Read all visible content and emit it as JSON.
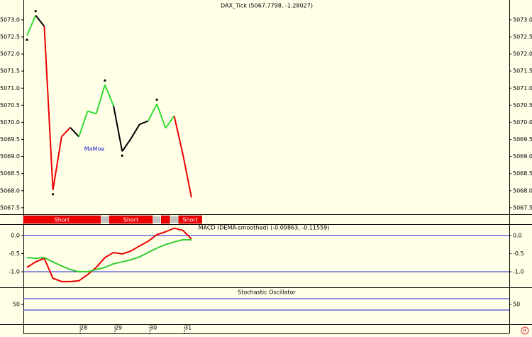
{
  "chart_data": [
    {
      "type": "line",
      "title": "DAX_Tick (5067.7798, -1.28027)",
      "annotation": "MaMoe",
      "x": [
        0,
        1,
        2,
        3,
        4,
        5,
        6,
        7,
        8,
        9,
        10,
        11,
        12,
        13,
        14,
        15,
        16,
        17,
        18,
        19
      ],
      "values": [
        5072.54,
        5073.13,
        5072.81,
        5068.02,
        5069.58,
        5069.85,
        5069.58,
        5070.33,
        5070.25,
        5071.1,
        5070.48,
        5069.15,
        5069.52,
        5069.94,
        5070.04,
        5070.54,
        5069.83,
        5070.19,
        5069.07,
        5067.8
      ],
      "segment_colors": [
        "#33dd33",
        "#000000",
        "#ee0000",
        "#ee0000",
        "#ee0000",
        "#000000",
        "#33dd33",
        "#33dd33",
        "#33dd33",
        "#33dd33",
        "#000000",
        "#000000",
        "#000000",
        "#000000",
        "#33dd33",
        "#33dd33",
        "#33dd33",
        "#ee0000",
        "#ee0000"
      ],
      "pivots": {
        "high": [
          1,
          9,
          15
        ],
        "low": [
          0,
          3,
          11
        ]
      },
      "signals": [
        {
          "state": "short",
          "label": "Short",
          "from": -0.41,
          "to": 8.5
        },
        {
          "state": "flat",
          "label": null,
          "from": 8.5,
          "to": 9.5
        },
        {
          "state": "short",
          "label": "Short",
          "from": 9.5,
          "to": 14.5
        },
        {
          "state": "flat",
          "label": null,
          "from": 14.5,
          "to": 15.5
        },
        {
          "state": "short",
          "label": null,
          "from": 15.5,
          "to": 16.5
        },
        {
          "state": "flat",
          "label": null,
          "from": 16.5,
          "to": 17.5
        },
        {
          "state": "short",
          "label": "Short",
          "from": 17.5,
          "to": 20.2
        }
      ],
      "signal_colors": {
        "short": "#ee0000",
        "flat": "#c0c0c0"
      },
      "xlim": [
        -0.41,
        55.7
      ],
      "xticks": [
        {
          "value": 6.15,
          "label": "28"
        },
        {
          "value": 10.16,
          "label": "29"
        },
        {
          "value": 14.18,
          "label": "30"
        },
        {
          "value": 18.2,
          "label": "31"
        }
      ],
      "ylim": [
        5067.31,
        5073.58
      ],
      "yticks": [
        5067.5,
        {
          "value": 5068,
          "label": "5068.0"
        },
        5068.5,
        {
          "value": 5069,
          "label": "5069.0"
        },
        5069.5,
        {
          "value": 5070,
          "label": "5070.0"
        },
        5070.5,
        {
          "value": 5071,
          "label": "5071.0"
        },
        5071.5,
        {
          "value": 5072,
          "label": "5072.0"
        },
        5072.5,
        {
          "value": 5073,
          "label": "5073.0"
        }
      ]
    },
    {
      "type": "line",
      "title": "MACD (DEMA-smoothed) (-0.09863, -0.11559)",
      "series": [
        {
          "color": "#ee0000",
          "values": [
            -0.88,
            -0.73,
            -0.63,
            -1.18,
            -1.27,
            -1.27,
            -1.25,
            -1.08,
            -0.88,
            -0.61,
            -0.47,
            -0.51,
            -0.43,
            -0.29,
            -0.16,
            0.02,
            0.1,
            0.2,
            0.14,
            -0.1
          ]
        },
        {
          "color": "#33cc33",
          "values": [
            -0.61,
            -0.63,
            -0.61,
            -0.73,
            -0.84,
            -0.94,
            -1.0,
            -1.0,
            -0.94,
            -0.88,
            -0.78,
            -0.73,
            -0.67,
            -0.59,
            -0.47,
            -0.35,
            -0.25,
            -0.18,
            -0.12,
            -0.12
          ]
        }
      ],
      "ylim": [
        -1.43,
        0.31
      ],
      "yticks": [
        {
          "value": -1,
          "label": "-1.0"
        },
        -0.5,
        {
          "value": 0,
          "label": "0.0"
        }
      ],
      "levels": [
        0,
        -1
      ],
      "level_color": "#2020d0"
    },
    {
      "type": "line",
      "title": "Stochastic Oscillator",
      "ylim": [
        -55,
        136.25
      ],
      "yticks": [
        50
      ],
      "levels": [
        20,
        80
      ],
      "level_color": "#2020d0"
    }
  ]
}
